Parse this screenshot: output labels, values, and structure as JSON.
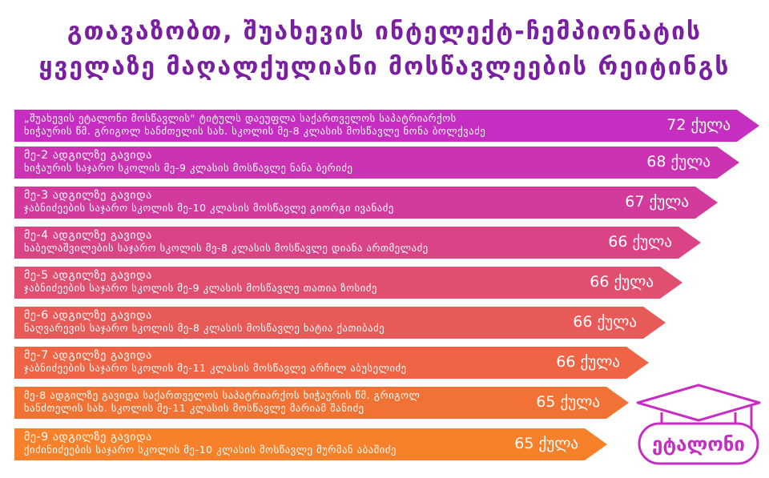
{
  "title": {
    "line1": "გთავაზობთ, შუახევის ინტელექტ-ჩემპიონატის",
    "line2": "ყველაზე მაღალქულიანი მოსწავლეების რეიტინგს"
  },
  "rows": [
    {
      "line1": "„შუახევის ეტალონი მოსწავლის\" ტიტულს დაეუფლა საქართველოს საპატრიარქოს",
      "line2": "ხიჭაურის წმ. გრიგოლ ხანძთელის სახ. სკოლის მე-8 კლასის მოსწავლე ნონა ბოლქვაძე",
      "score": "72 ქულა",
      "color": "#c62ec2"
    },
    {
      "line1": "მე-2 ადგილზე გავიდა",
      "line2": "ხიჭაურის საჯარო სკოლის მე-9 კლასის მოსწავლე ნანა ბერიძე",
      "score": "68 ქულა",
      "color": "#cc33b3"
    },
    {
      "line1": "მე-3 ადგილზე გავიდა",
      "line2": "ჯაბნიძეების საჯარო სკოლის მე-10 კლასის მოსწავლე გიორგი ივანაძე",
      "score": "67 ქულა",
      "color": "#d33a9e"
    },
    {
      "line1": "მე-4 ადგილზე გავიდა",
      "line2": "ხაბელაშვილების საჯარო სკოლის მე-8 კლასის მოსწავლე დიანა ართმელაძე",
      "score": "66 ქულა",
      "color": "#da4487"
    },
    {
      "line1": "მე-5 ადგილზე გავიდა",
      "line2": "ჯაბნიძეების საჯარო სკოლის მე-9 კლასის მოსწავლე თათია ზოსიძე",
      "score": "66 ქულა",
      "color": "#e14f70"
    },
    {
      "line1": "მე-6 ადგილზე გავიდა",
      "line2": "ნაღვარევის საჯარო სკოლის მე-8 კლასის მოსწავლე ხატია ქათიბაძე",
      "score": "66 ქულა",
      "color": "#e85a58"
    },
    {
      "line1": "მე-7 ადგილზე გავიდა",
      "line2": "ჯაბნიძეების საჯარო სკოლის მე-11 კლასის მოსწავლე არჩილ აბუსელიძე",
      "score": "66 ქულა",
      "color": "#ee6444"
    },
    {
      "line1": "მე-8 ადგილზე გავიდა საქართველოს საპატრიარქოს ხიჭაურის წმ. გრიგოლ",
      "line2": "ხანძთელის სახ. სკოლის მე-11 კლასის მოსწავლე მარიამ შანიძე",
      "score": "65 ქულა",
      "color": "#f27235"
    },
    {
      "line1": "მე-9 ადგილზე გავიდა",
      "line2": "ქიძინიძეების საჯარო სკოლის მე-10 კლასის მოსწავლე მურმან აბაშიძე",
      "score": "65 ქულა",
      "color": "#f7802a"
    }
  ],
  "logo": {
    "text": "ეტალონი",
    "color": "#c62ec2",
    "icon": "graduation-cap-icon"
  }
}
